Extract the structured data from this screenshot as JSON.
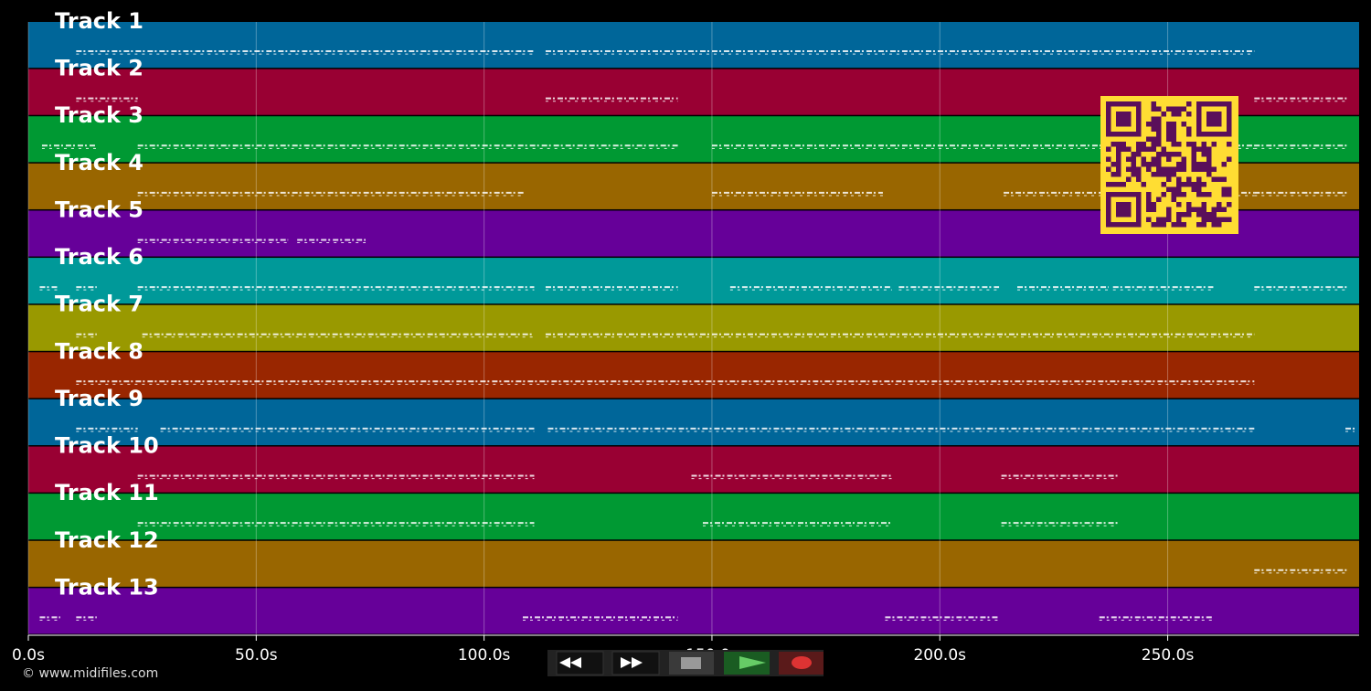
{
  "chart_data": {
    "type": "pianoroll",
    "xlim": [
      0,
      292
    ],
    "xticks": [
      {
        "value": 0,
        "label": "0.0s"
      },
      {
        "value": 50,
        "label": "50.0s"
      },
      {
        "value": 100,
        "label": "100.0s"
      },
      {
        "value": 150,
        "label": "150.0s"
      },
      {
        "value": 200,
        "label": "200.0s"
      },
      {
        "value": 250,
        "label": "250.0s"
      }
    ],
    "grid": true,
    "tracks": [
      {
        "name": "Track 1",
        "color": "#006699",
        "note_spans": [
          [
            10.5,
            111
          ],
          [
            113.5,
            269
          ]
        ]
      },
      {
        "name": "Track 2",
        "color": "#990033",
        "note_spans": [
          [
            10.5,
            24
          ],
          [
            113.5,
            142.5
          ],
          [
            269,
            289.5
          ]
        ]
      },
      {
        "name": "Track 3",
        "color": "#009933",
        "note_spans": [
          [
            3,
            15
          ],
          [
            24,
            142.5
          ],
          [
            150,
            269
          ],
          [
            269,
            289.5
          ]
        ]
      },
      {
        "name": "Track 4",
        "color": "#996600",
        "note_spans": [
          [
            24,
            109
          ],
          [
            150,
            187.5
          ],
          [
            214,
            269
          ],
          [
            269,
            289.5
          ]
        ]
      },
      {
        "name": "Track 5",
        "color": "#660099",
        "note_spans": [
          [
            24,
            57
          ],
          [
            59,
            74
          ]
        ]
      },
      {
        "name": "Track 6",
        "color": "#009999",
        "note_spans": [
          [
            2.5,
            6.5
          ],
          [
            10.5,
            15
          ],
          [
            24,
            111
          ],
          [
            113.5,
            142.5
          ],
          [
            154,
            189.5
          ],
          [
            191,
            213
          ],
          [
            217,
            237
          ],
          [
            238,
            260
          ],
          [
            269,
            289.5
          ]
        ]
      },
      {
        "name": "Track 7",
        "color": "#999900",
        "note_spans": [
          [
            10.5,
            15
          ],
          [
            25,
            111
          ],
          [
            113.5,
            269
          ]
        ]
      },
      {
        "name": "Track 8",
        "color": "#992600",
        "note_spans": [
          [
            10.5,
            269
          ]
        ]
      },
      {
        "name": "Track 9",
        "color": "#006699",
        "note_spans": [
          [
            10.5,
            24
          ],
          [
            29,
            111
          ],
          [
            114,
            269
          ],
          [
            289,
            291
          ]
        ]
      },
      {
        "name": "Track 10",
        "color": "#990033",
        "note_spans": [
          [
            24,
            111
          ],
          [
            145.5,
            189.5
          ],
          [
            213.5,
            239
          ]
        ]
      },
      {
        "name": "Track 11",
        "color": "#009933",
        "note_spans": [
          [
            24,
            111
          ],
          [
            148,
            189.5
          ],
          [
            213.5,
            239
          ]
        ]
      },
      {
        "name": "Track 12",
        "color": "#996600",
        "note_spans": [
          [
            269,
            289.5
          ]
        ]
      },
      {
        "name": "Track 13",
        "color": "#660099",
        "note_spans": [
          [
            2.5,
            7
          ],
          [
            10.5,
            15
          ],
          [
            108.5,
            142.5
          ],
          [
            188,
            213
          ],
          [
            235,
            260
          ]
        ]
      }
    ]
  },
  "footer": {
    "copyright": "© www.midifiles.com"
  }
}
